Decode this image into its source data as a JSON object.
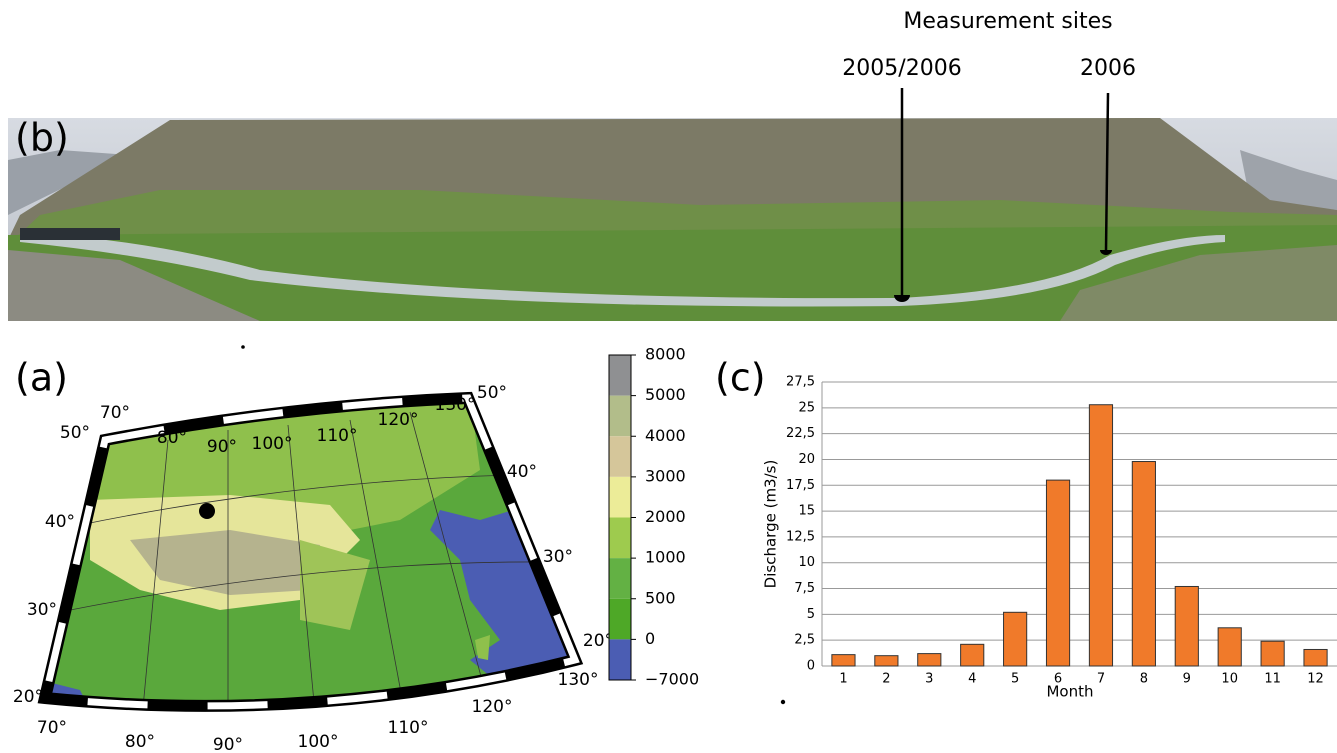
{
  "photo": {
    "label": "(b)",
    "heading": "Measurement sites",
    "sites": [
      "2005/2006",
      "2006"
    ]
  },
  "map": {
    "label": "(a)",
    "longitudes": [
      "70°",
      "80°",
      "90°",
      "100°",
      "110°",
      "120°",
      "130°"
    ],
    "latitudes": [
      "50°",
      "40°",
      "30°",
      "20°"
    ],
    "colorbar_ticks": [
      8000,
      5000,
      4000,
      3000,
      2000,
      1000,
      500,
      0,
      {
        "value": -7000,
        "label": "−7000"
      }
    ]
  },
  "chart_data": {
    "type": "bar",
    "label": "(c)",
    "x_label": "Month",
    "y_label": "Discharge (m3/s)",
    "categories": [
      "1",
      "2",
      "3",
      "4",
      "5",
      "6",
      "7",
      "8",
      "9",
      "10",
      "11",
      "12"
    ],
    "values": [
      1.1,
      1.0,
      1.2,
      2.1,
      5.2,
      18,
      25.3,
      19.8,
      7.7,
      3.7,
      2.4,
      1.6
    ],
    "color": "#f07a2a",
    "ylim": [
      0,
      27.5
    ],
    "yticks": [
      0,
      {
        "value": 2.5,
        "label": "2,5"
      },
      5,
      {
        "value": 7.5,
        "label": "7,5"
      },
      10,
      {
        "value": 12.5,
        "label": "12,5"
      },
      15,
      {
        "value": 17.5,
        "label": "17,5"
      },
      20,
      {
        "value": 22.5,
        "label": "22,5"
      },
      25,
      {
        "value": 27.5,
        "label": "27,5"
      }
    ],
    "grid": true
  }
}
